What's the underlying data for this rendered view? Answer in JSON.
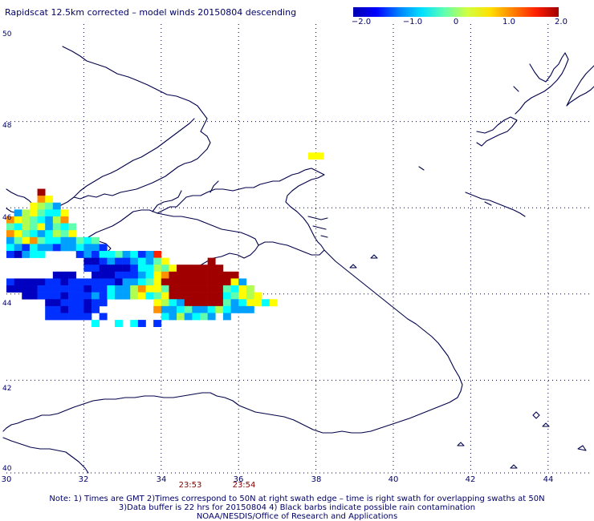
{
  "title": "Rapidscat 12.5km corrected – model winds 20150804 descending",
  "colorbar": {
    "stops": [
      "#0000b0",
      "#0000ff",
      "#0080ff",
      "#00e0ff",
      "#60ffb0",
      "#d0ff40",
      "#ffe000",
      "#ff8000",
      "#ff2000",
      "#a00000"
    ],
    "tick_labels": [
      "−2.0",
      "−1.0",
      "0",
      "1.0",
      "2.0"
    ],
    "range": [
      -2.0,
      2.0
    ]
  },
  "axes": {
    "lat_labels": [
      "50",
      "48",
      "46",
      "44",
      "42",
      "40"
    ],
    "lat_values": [
      50,
      48,
      46,
      44,
      42,
      40
    ],
    "lon_labels": [
      "30",
      "32",
      "34",
      "36",
      "38",
      "40",
      "42",
      "44"
    ],
    "lon_values": [
      30,
      32,
      34,
      36,
      38,
      40,
      42,
      44
    ],
    "lon_range": [
      30,
      45
    ],
    "lat_range": [
      40,
      50
    ],
    "grid": "dotted"
  },
  "times": [
    {
      "label": "23:53",
      "lon": 34.75
    },
    {
      "label": "23:54",
      "lon": 36.2
    }
  ],
  "notes": {
    "line1": "Note: 1) Times are GMT 2)Times correspond to 50N at right swath edge – time is right swath for overlapping swaths at 50N",
    "line2": "3)Data buffer is 22 hrs for 20150804 4) Black barbs indicate possible rain contamination",
    "line3": "NOAA/NESDIS/Office of Research and Applications"
  },
  "cell_colors": {
    "D": "#0000c0",
    "B": "#0030ff",
    "S": "#00a0ff",
    "C": "#00ffff",
    "G": "#60ffb0",
    "L": "#b0ff50",
    "Y": "#ffff00",
    "O": "#ff9000",
    "R": "#ff2000",
    "M": "#a00000"
  },
  "map_data": {
    "cell_size_deg": [
      0.2,
      0.16
    ],
    "rows": [
      {
        "lat": 46.36,
        "lon0": 30.8,
        "cells": "M"
      },
      {
        "lat": 46.2,
        "lon0": 30.8,
        "cells": "OY"
      },
      {
        "lat": 46.04,
        "lon0": 30.6,
        "cells": "YLGS"
      },
      {
        "lat": 45.88,
        "lon0": 30.2,
        "cells": "SLYGCCY"
      },
      {
        "lat": 45.72,
        "lon0": 30.0,
        "cells": "OYLGCSLO"
      },
      {
        "lat": 45.56,
        "lon0": 30.0,
        "cells": "GCLGYSGCG"
      },
      {
        "lat": 45.4,
        "lon0": 30.0,
        "cells": "OYGCSCLGY"
      },
      {
        "lat": 45.24,
        "lon0": 30.0,
        "cells": "SGYOGCCSSGCG"
      },
      {
        "lat": 45.08,
        "lon0": 30.0,
        "cells": "CSBCSSBSSCSSB"
      },
      {
        "lat": 44.92,
        "lon0": 30.0,
        "cells": "BDSCC....BSBCCGSCBSR"
      },
      {
        "lat": 44.76,
        "lon0": 32.0,
        "cells": "DDBSBBSCSGY.....M"
      },
      {
        "lat": 44.6,
        "lon0": 32.0,
        "cells": "BBDDDDBCCLGYMMMMMM"
      },
      {
        "lat": 44.44,
        "lon0": 31.0,
        "cells": ".DDD..DDDBBBSCYOMMMMMMMMM"
      },
      {
        "lat": 44.28,
        "lon0": 30.0,
        "cells": "BDDDDBBDBBBBBBDSSCGYMMMMMMMMMYS"
      },
      {
        "lat": 44.12,
        "lon0": 30.0,
        "cells": "DDDDBBBBBBDBBCSSLOYYGMMMMMMMGCYL"
      },
      {
        "lat": 43.96,
        "lon0": 30.4,
        "cells": "DDBBBDBBBSBCSSLYCGYMMMMMMMCGYLY"
      },
      {
        "lat": 43.8,
        "lon0": 31.0,
        "cells": "DDBBBDBB......YLCSMMMMMGSCYYCY"
      },
      {
        "lat": 43.64,
        "lon0": 31.0,
        "cells": "BBDBBDB.......OSSCGSSCLCSSS"
      },
      {
        "lat": 43.48,
        "lon0": 31.0,
        "cells": "BBBBBB.B.......CSLSCGS.S"
      },
      {
        "lat": 43.32,
        "lon0": 32.2,
        "cells": "C..C.CB.B"
      }
    ]
  }
}
